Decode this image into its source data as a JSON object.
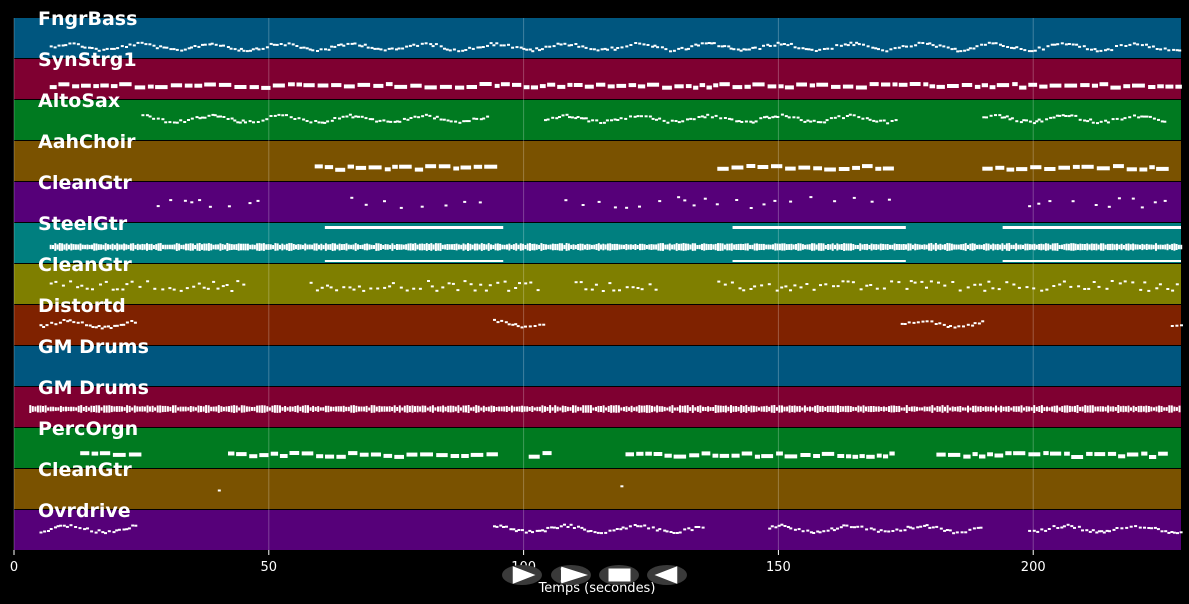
{
  "chart_data": {
    "type": "piano-roll",
    "xlabel": "Temps (secondes)",
    "xlim": [
      0,
      229
    ],
    "xticks": [
      0,
      50,
      100,
      150,
      200
    ],
    "grid": "vertical",
    "tracks": [
      {
        "name": "FngrBass",
        "color": "#00567f",
        "segments": [
          [
            7,
            229
          ]
        ],
        "style": "dots",
        "bass": true
      },
      {
        "name": "SynStrg1",
        "color": "#7f0031",
        "segments": [
          [
            7,
            229
          ]
        ],
        "style": "blocks"
      },
      {
        "name": "AltoSax",
        "color": "#007a20",
        "segments": [
          [
            25,
            93
          ],
          [
            104,
            173
          ],
          [
            190,
            226
          ]
        ],
        "style": "dots"
      },
      {
        "name": "AahChoir",
        "color": "#7a5200",
        "segments": [
          [
            59,
            93
          ],
          [
            138,
            173
          ],
          [
            190,
            226
          ]
        ],
        "style": "blocks"
      },
      {
        "name": "CleanGtr",
        "color": "#560079",
        "segments": [
          [
            28,
            50
          ],
          [
            66,
            93
          ],
          [
            108,
            173
          ],
          [
            199,
            229
          ]
        ],
        "style": "sparse"
      },
      {
        "name": "SteelGtr",
        "color": "#007f7f",
        "segments": [
          [
            7,
            229
          ]
        ],
        "style": "dense",
        "sustain": [
          [
            61,
            96
          ],
          [
            141,
            175
          ],
          [
            194,
            229
          ]
        ]
      },
      {
        "name": "CleanGtr",
        "color": "#7f7f00",
        "segments": [
          [
            7,
            45
          ],
          [
            58,
            104
          ],
          [
            110,
            126
          ],
          [
            138,
            229
          ]
        ],
        "style": "chords"
      },
      {
        "name": "Distortd",
        "color": "#7f2200",
        "segments": [
          [
            5,
            24
          ],
          [
            94,
            104
          ],
          [
            174,
            190
          ],
          [
            227,
            229
          ]
        ],
        "style": "dots"
      },
      {
        "name": "GM Drums",
        "color": "#00567f",
        "segments": [],
        "style": "empty"
      },
      {
        "name": "GM Drums",
        "color": "#7f0031",
        "segments": [
          [
            3,
            229
          ]
        ],
        "style": "drums"
      },
      {
        "name": "PercOrgn",
        "color": "#007a20",
        "segments": [
          [
            13,
            24
          ],
          [
            42,
            94
          ],
          [
            101,
            104
          ],
          [
            120,
            173
          ],
          [
            181,
            226
          ]
        ],
        "style": "blocks"
      },
      {
        "name": "CleanGtr",
        "color": "#7a5200",
        "segments": [
          [
            40,
            42
          ],
          [
            119,
            122
          ]
        ],
        "style": "sparse"
      },
      {
        "name": "Ovrdrive",
        "color": "#560079",
        "segments": [
          [
            5,
            24
          ],
          [
            94,
            135
          ],
          [
            148,
            190
          ],
          [
            199,
            229
          ]
        ],
        "style": "dots"
      }
    ]
  },
  "controls": {
    "play": "play-button",
    "fast_forward": "fast-forward-button",
    "stop": "stop-button",
    "rewind": "rewind-button"
  }
}
